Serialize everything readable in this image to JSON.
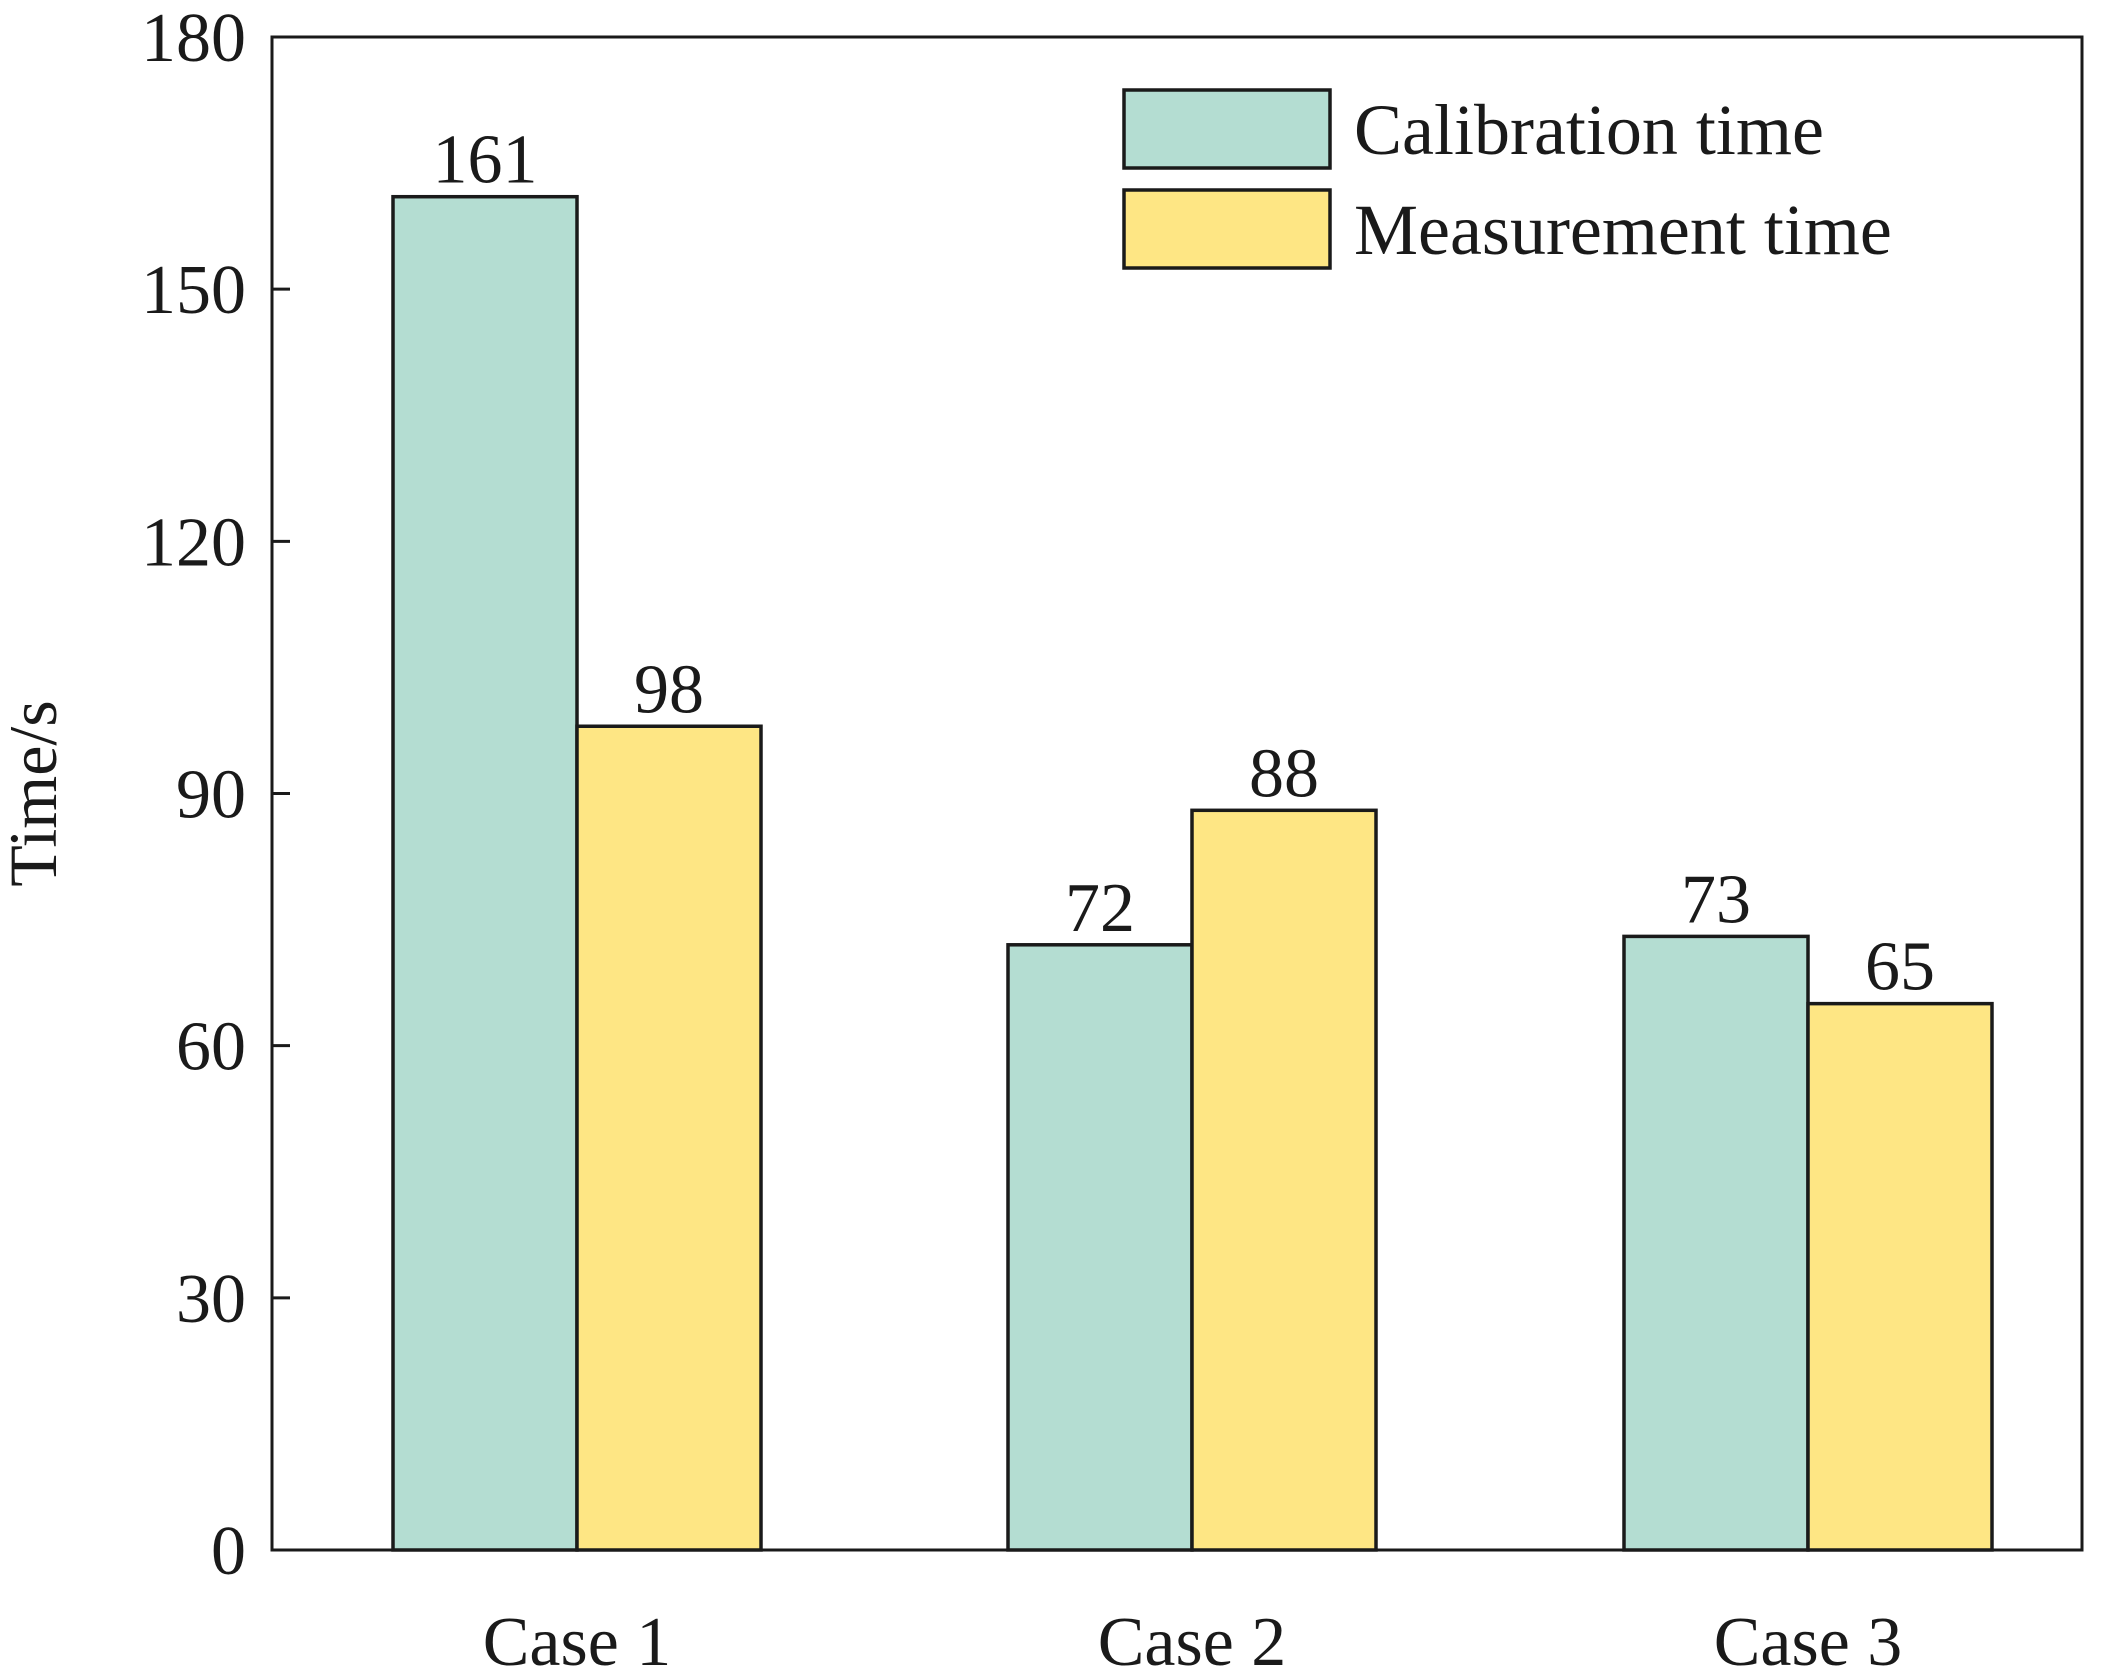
{
  "chart_data": {
    "type": "bar",
    "title": "",
    "xlabel": "",
    "ylabel": "Time/s",
    "ylim": [
      0,
      180
    ],
    "yticks": [
      "0",
      "30",
      "60",
      "90",
      "120",
      "150",
      "180"
    ],
    "categories": [
      "Case 1",
      "Case 2",
      "Case 3"
    ],
    "series": [
      {
        "name": "Calibration time",
        "values": [
          161,
          72,
          73
        ],
        "color": "#b4ddd2"
      },
      {
        "name": "Measurement time",
        "values": [
          98,
          88,
          65
        ],
        "color": "#fee684"
      }
    ],
    "legend_position": "top-right",
    "grid": false
  }
}
